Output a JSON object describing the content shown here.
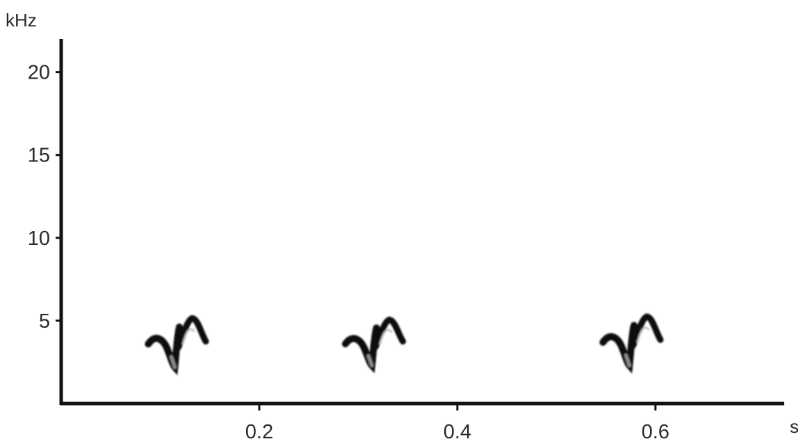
{
  "chart_data": {
    "type": "scatter",
    "title": "",
    "xlabel": "s",
    "ylabel": "kHz",
    "xlim": [
      0,
      0.73
    ],
    "ylim": [
      0,
      22
    ],
    "x_ticks": [
      {
        "value": 0.2,
        "label": "0.2"
      },
      {
        "value": 0.4,
        "label": "0.4"
      },
      {
        "value": 0.6,
        "label": "0.6"
      }
    ],
    "y_ticks": [
      {
        "value": 5,
        "label": "5"
      },
      {
        "value": 10,
        "label": "10"
      },
      {
        "value": 15,
        "label": "15"
      },
      {
        "value": 20,
        "label": "20"
      }
    ],
    "grid": false,
    "legend": "none",
    "series": [
      {
        "color": "#111111",
        "values": [
          {
            "start_s": 0.088,
            "end_s": 0.146,
            "min_khz": 2.2,
            "max_khz": 5.3
          },
          {
            "start_s": 0.287,
            "end_s": 0.345,
            "min_khz": 2.3,
            "max_khz": 5.2
          },
          {
            "start_s": 0.547,
            "end_s": 0.605,
            "min_khz": 2.3,
            "max_khz": 5.4
          }
        ]
      }
    ]
  }
}
